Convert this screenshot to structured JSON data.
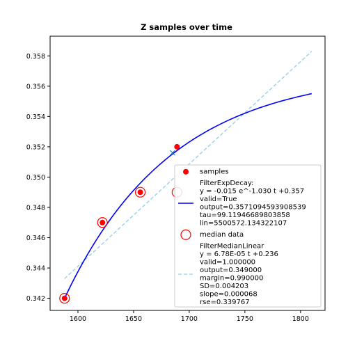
{
  "chart_data": {
    "type": "scatter",
    "title": "Z samples over time",
    "xlabel": "",
    "ylabel": "",
    "xlim": [
      1575,
      1822
    ],
    "ylim": [
      0.3412,
      0.3593
    ],
    "x_ticks": [
      1600,
      1650,
      1700,
      1750,
      1800
    ],
    "y_ticks": [
      0.342,
      0.344,
      0.346,
      0.348,
      0.35,
      0.352,
      0.354,
      0.356,
      0.358
    ],
    "grid": false,
    "legend_position": "lower-right",
    "colors": {
      "samples": "#ff0000",
      "median": "#ff0000",
      "exp_fit": "#0000ff",
      "linear_fit": "#a6d3ec",
      "cross_marker": "#1f77b4"
    },
    "series": [
      {
        "name": "samples",
        "kind": "scatter",
        "x": [
          1588,
          1622,
          1656,
          1689
        ],
        "y": [
          0.342,
          0.347,
          0.349,
          0.352
        ]
      },
      {
        "name": "median data",
        "kind": "hollow-circle",
        "x": [
          1588,
          1622,
          1656,
          1689
        ],
        "y": [
          0.342,
          0.347,
          0.349,
          0.349
        ]
      },
      {
        "name": "FilterExpDecay",
        "kind": "line",
        "style": "solid",
        "a": -0.015,
        "b": -1.03,
        "c": 0.357,
        "x_start": 1588,
        "x_end": 1810,
        "tau": 99.11946689803858,
        "x_origin": 1588
      },
      {
        "name": "FilterMedianLinear",
        "kind": "line",
        "style": "dashed",
        "x": [
          1588,
          1810
        ],
        "y": [
          0.3433,
          0.3583
        ]
      }
    ],
    "markers": [
      {
        "kind": "x",
        "x": 1685,
        "y": 0.3516
      }
    ]
  },
  "legend": {
    "entries": [
      {
        "label_lines": [
          "samples"
        ]
      },
      {
        "label_lines": [
          "FilterExpDecay:",
          "y = -0.015 e^-1.030 t +0.357",
          "valid=True",
          "output=0.3571094593908539",
          "tau=99.11946689803858",
          "lin=5500572.134322107"
        ]
      },
      {
        "label_lines": [
          "median data"
        ]
      },
      {
        "label_lines": [
          "FilterMedianLinear",
          "y = 6.78E-05 t +0.236",
          "valid=1.000000",
          "output=0.349000",
          "margin=0.990000",
          "SD=0.004203",
          "slope=0.000068",
          "rse=0.339767"
        ]
      }
    ]
  }
}
